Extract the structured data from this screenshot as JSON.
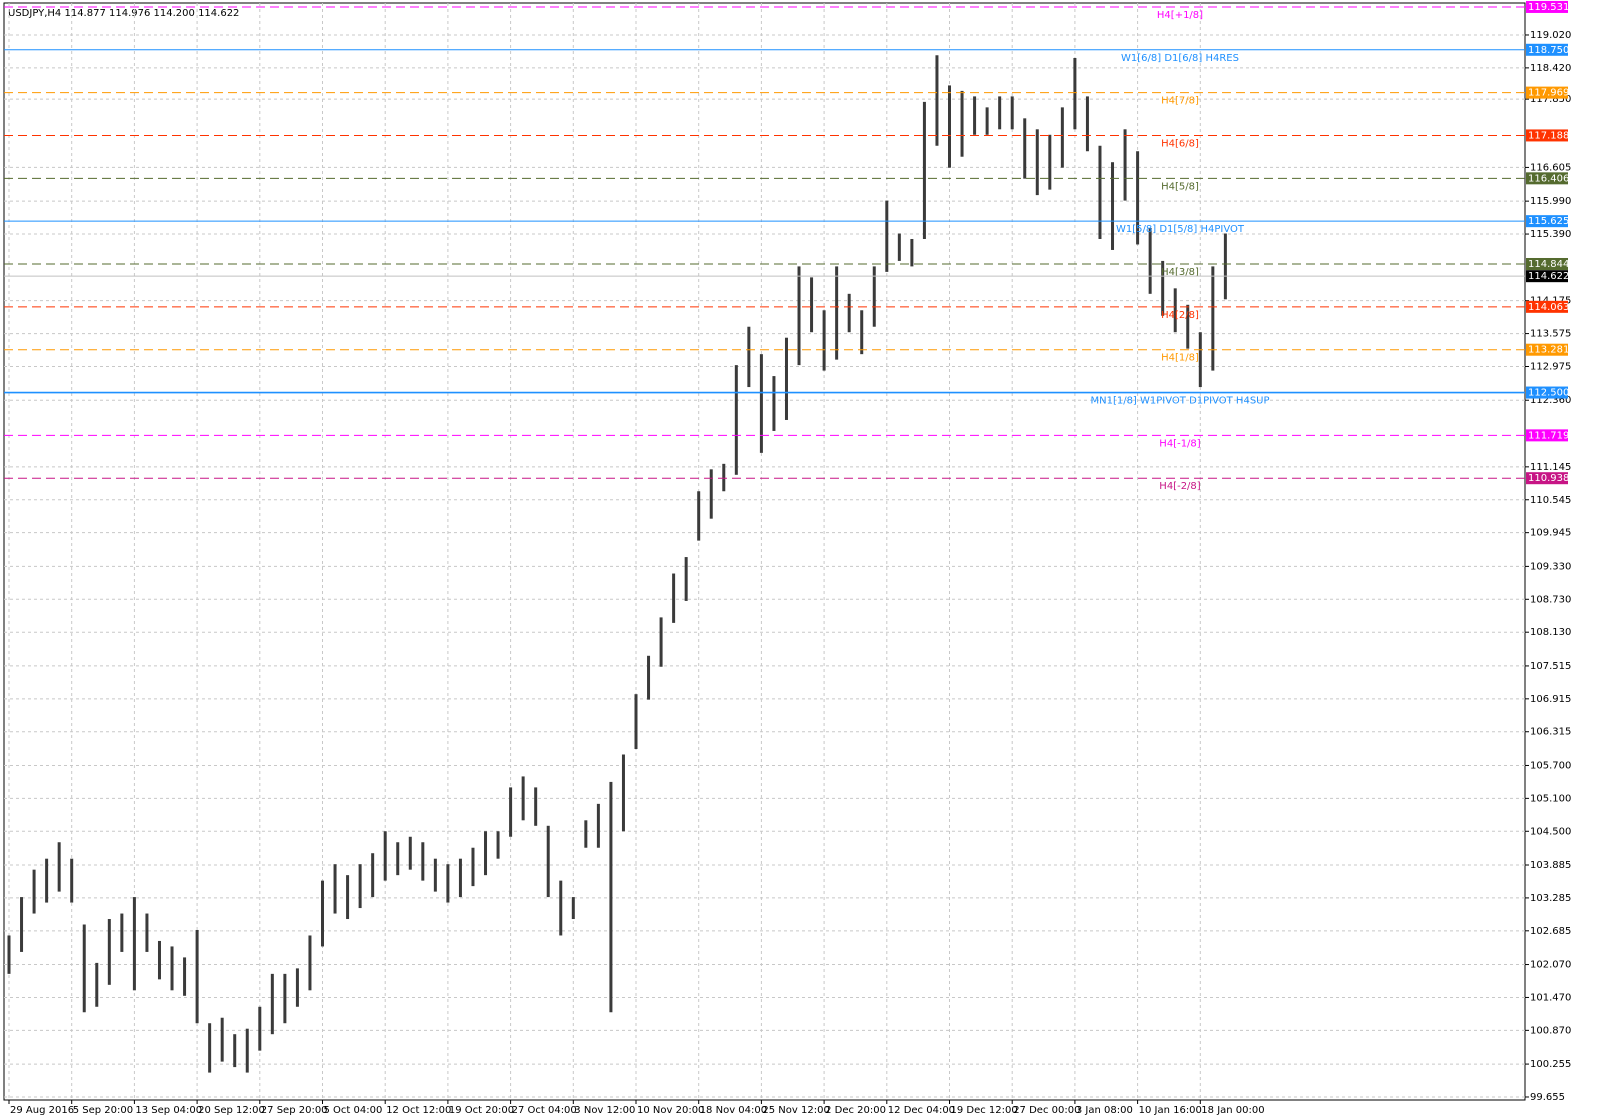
{
  "chart_data": {
    "type": "ohlc",
    "title": "USDJPY,H4  114.877 114.976 114.200 114.622",
    "categories": [
      "29 Aug 2016",
      "5 Sep 20:00",
      "13 Sep 04:00",
      "20 Sep 12:00",
      "27 Sep 20:00",
      "5 Oct 04:00",
      "12 Oct 12:00",
      "19 Oct 20:00",
      "27 Oct 04:00",
      "3 Nov 12:00",
      "10 Nov 20:00",
      "18 Nov 04:00",
      "25 Nov 12:00",
      "2 Dec 20:00",
      "12 Dec 04:00",
      "19 Dec 12:00",
      "27 Dec 00:00",
      "3 Jan 08:00",
      "10 Jan 16:00",
      "18 Jan 00:00"
    ],
    "high": [
      102.6,
      103.3,
      103.8,
      104.0,
      104.3,
      104.0,
      102.8,
      102.1,
      102.9,
      103.0,
      103.3,
      103.0,
      102.5,
      102.4,
      102.2,
      102.7,
      101.0,
      101.1,
      100.8,
      100.9,
      101.3,
      101.9,
      101.9,
      102.0,
      102.6,
      103.6,
      103.9,
      103.7,
      103.9,
      104.1,
      104.5,
      104.3,
      104.4,
      104.3,
      104.0,
      103.9,
      104.0,
      104.2,
      104.5,
      104.5,
      105.3,
      105.5,
      105.3,
      104.6,
      103.6,
      103.3,
      104.7,
      105.0,
      105.4,
      105.9,
      107.0,
      107.7,
      108.4,
      109.2,
      109.5,
      110.7,
      111.1,
      111.2,
      113.0,
      113.7,
      113.2,
      112.8,
      113.5,
      114.8,
      114.6,
      114.0,
      114.8,
      114.3,
      114.0,
      114.8,
      116.0,
      115.4,
      115.3,
      117.8,
      118.65,
      118.1,
      118.0,
      117.9,
      117.7,
      117.9,
      117.9,
      117.5,
      117.3,
      117.2,
      117.7,
      118.6,
      117.9,
      117.0,
      116.7,
      117.3,
      116.9,
      115.5,
      114.9,
      114.4,
      114.1,
      113.6,
      114.8,
      115.4
    ],
    "low": [
      101.9,
      102.3,
      103.0,
      103.2,
      103.4,
      103.2,
      101.2,
      101.3,
      101.7,
      102.3,
      101.6,
      102.3,
      101.8,
      101.6,
      101.5,
      101.0,
      100.1,
      100.3,
      100.2,
      100.1,
      100.5,
      100.8,
      101.0,
      101.3,
      101.6,
      102.4,
      103.0,
      102.9,
      103.1,
      103.3,
      103.6,
      103.7,
      103.8,
      103.6,
      103.4,
      103.2,
      103.3,
      103.5,
      103.7,
      104.0,
      104.4,
      104.7,
      104.6,
      103.3,
      102.6,
      102.9,
      104.2,
      104.2,
      101.2,
      104.5,
      106.0,
      106.9,
      107.5,
      108.3,
      108.7,
      109.8,
      110.2,
      110.7,
      111.0,
      112.6,
      111.4,
      111.8,
      112.0,
      113.0,
      113.6,
      112.9,
      113.1,
      113.6,
      113.2,
      113.7,
      114.7,
      114.9,
      114.8,
      115.3,
      117.0,
      116.6,
      116.8,
      117.2,
      117.2,
      117.3,
      117.3,
      116.4,
      116.1,
      116.2,
      116.6,
      117.3,
      116.9,
      115.3,
      115.1,
      116.0,
      115.2,
      114.3,
      113.9,
      113.6,
      113.3,
      112.6,
      112.9,
      114.2
    ],
    "color": "#3a3a3a",
    "ylim": [
      99.6,
      119.603
    ],
    "yticks": [
      {
        "value": 119.02,
        "label": "119.020"
      },
      {
        "value": 118.42,
        "label": "118.420"
      },
      {
        "value": 117.85,
        "label": "117.850"
      },
      {
        "value": 116.605,
        "label": "116.605"
      },
      {
        "value": 115.99,
        "label": "115.990"
      },
      {
        "value": 115.39,
        "label": "115.390"
      },
      {
        "value": 114.175,
        "label": "114.175"
      },
      {
        "value": 113.575,
        "label": "113.575"
      },
      {
        "value": 112.975,
        "label": "112.975"
      },
      {
        "value": 112.36,
        "label": "112.360"
      },
      {
        "value": 111.145,
        "label": "111.145"
      },
      {
        "value": 110.545,
        "label": "110.545"
      },
      {
        "value": 109.945,
        "label": "109.945"
      },
      {
        "value": 109.33,
        "label": "109.330"
      },
      {
        "value": 108.73,
        "label": "108.730"
      },
      {
        "value": 108.13,
        "label": "108.130"
      },
      {
        "value": 107.515,
        "label": "107.515"
      },
      {
        "value": 106.915,
        "label": "106.915"
      },
      {
        "value": 106.315,
        "label": "106.315"
      },
      {
        "value": 105.7,
        "label": "105.700"
      },
      {
        "value": 105.1,
        "label": "105.100"
      },
      {
        "value": 104.5,
        "label": "104.500"
      },
      {
        "value": 103.885,
        "label": "103.885"
      },
      {
        "value": 103.285,
        "label": "103.285"
      },
      {
        "value": 102.685,
        "label": "102.685"
      },
      {
        "value": 102.07,
        "label": "102.070"
      },
      {
        "value": 101.47,
        "label": "101.470"
      },
      {
        "value": 100.87,
        "label": "100.870"
      },
      {
        "value": 100.255,
        "label": "100.255"
      },
      {
        "value": 99.655,
        "label": "99.655"
      }
    ],
    "grid": true,
    "levels": [
      {
        "name": "H4[+1/8]",
        "value": 119.531,
        "label": "119.531",
        "color": "#ff00ff",
        "style": "dashed"
      },
      {
        "name": "W1[6/8] D1[6/8] H4RES",
        "value": 118.75,
        "label": "118.750",
        "color": "#1e90ff",
        "style": "solid"
      },
      {
        "name": "H4[7/8]",
        "value": 117.969,
        "label": "117.969",
        "color": "#ff9900",
        "style": "dashed"
      },
      {
        "name": "H4[6/8]",
        "value": 117.188,
        "label": "117.188",
        "color": "#ff3300",
        "style": "dashed"
      },
      {
        "name": "H4[5/8]",
        "value": 116.406,
        "label": "116.406",
        "color": "#556b2f",
        "style": "dashed"
      },
      {
        "name": "W1[5/8] D1[5/8] H4PIVOT",
        "value": 115.625,
        "label": "115.625",
        "color": "#1e90ff",
        "style": "solid"
      },
      {
        "name": "H4[3/8]",
        "value": 114.844,
        "label": "114.844",
        "color": "#556b2f",
        "style": "dashed"
      },
      {
        "name": "H4[2/8]",
        "value": 114.063,
        "label": "114.063",
        "color": "#ff3300",
        "style": "dashed"
      },
      {
        "name": "H4[1/8]",
        "value": 113.281,
        "label": "113.281",
        "color": "#ff9900",
        "style": "dashed"
      },
      {
        "name": "MN1[1/8] W1PIVOT D1PIVOT H4SUP",
        "value": 112.5,
        "label": "112.500",
        "color": "#1e90ff",
        "style": "solid"
      },
      {
        "name": "H4[-1/8]",
        "value": 111.719,
        "label": "111.719",
        "color": "#ff00ff",
        "style": "dashed"
      },
      {
        "name": "H4[-2/8]",
        "value": 110.938,
        "label": "110.938",
        "color": "#c71585",
        "style": "dashed"
      }
    ],
    "current_price": 114.622,
    "current_color": "#000000"
  }
}
